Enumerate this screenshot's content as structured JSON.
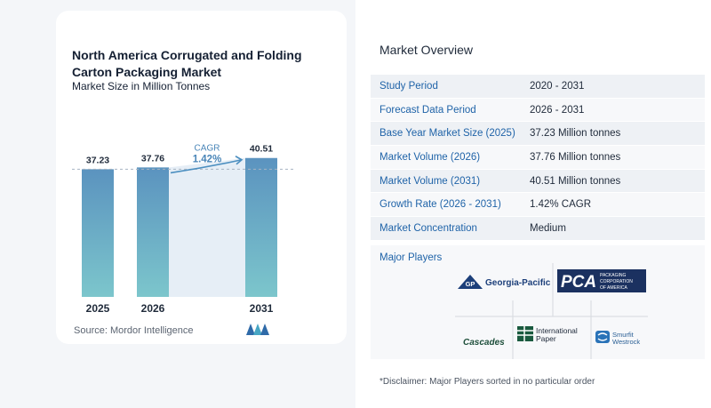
{
  "chart_data": {
    "type": "bar",
    "title": "North America Corrugated and Folding Carton Packaging Market",
    "subtitle": "Market Size in Million Tonnes",
    "categories": [
      "2025",
      "2026",
      "2031"
    ],
    "values": [
      37.23,
      37.76,
      40.51
    ],
    "value_labels": [
      "37.23",
      "37.76",
      "40.51"
    ],
    "annotation": {
      "label": "CAGR",
      "value": "1.42%"
    },
    "colors": {
      "bar_top": "#5b93bf",
      "bar_bottom": "#7cc6cc",
      "shade": "#e6eef6",
      "arrow": "#4c8fc0",
      "dashed": "#a7b4c2"
    },
    "ylim": [
      0,
      42
    ]
  },
  "source": "Source:  Mordor Intelligence",
  "overview": {
    "title": "Market Overview",
    "rows": [
      {
        "label": "Study Period",
        "value": "2020 - 2031"
      },
      {
        "label": "Forecast Data Period",
        "value": "2026 - 2031"
      },
      {
        "label": "Base Year Market Size (2025)",
        "value": "37.23 Million tonnes"
      },
      {
        "label": "Market Volume (2026)",
        "value": "37.76 Million tonnes"
      },
      {
        "label": "Market Volume (2031)",
        "value": "40.51 Million tonnes"
      },
      {
        "label": "Growth Rate (2026 - 2031)",
        "value": "1.42% CAGR"
      },
      {
        "label": "Market Concentration",
        "value": "Medium"
      }
    ]
  },
  "players": {
    "title": "Major Players",
    "georgia_pacific": {
      "badge": "GP",
      "name": "Georgia-Pacific"
    },
    "pca": {
      "badge": "PCA",
      "line1": "PACKAGING",
      "line2": "CORPORATION",
      "line3": "OF AMERICA"
    },
    "cascades": "Cascades",
    "international_paper": {
      "line1": "International",
      "line2": "Paper"
    },
    "smurfit": {
      "line1": "Smurfit",
      "line2": "Westrock"
    }
  },
  "disclaimer": "*Disclaimer: Major Players sorted in no particular order"
}
